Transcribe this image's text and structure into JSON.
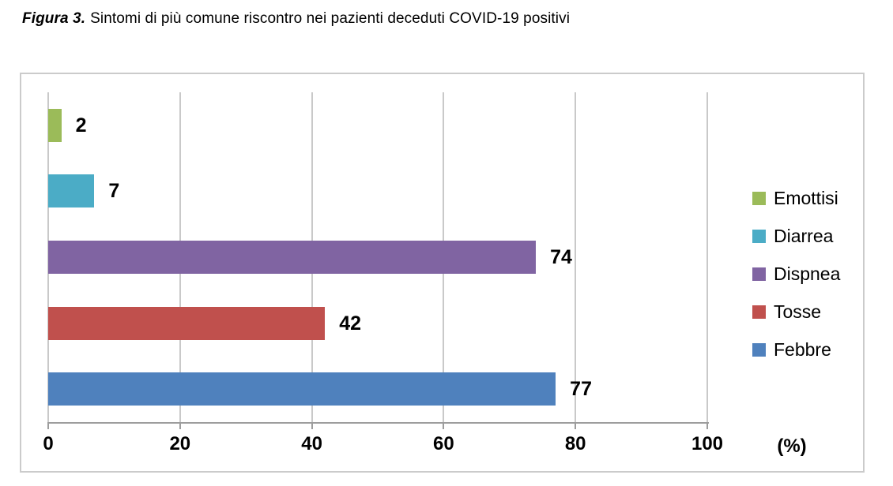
{
  "title": {
    "prefix": "Figura 3.",
    "text": "Sintomi di più comune riscontro nei pazienti deceduti COVID-19 positivi"
  },
  "chart_data": {
    "type": "bar",
    "orientation": "horizontal",
    "categories": [
      "Emottisi",
      "Diarrea",
      "Dispnea",
      "Tosse",
      "Febbre"
    ],
    "values": [
      2,
      7,
      74,
      42,
      77
    ],
    "colors": [
      "#9BBB59",
      "#4BACC6",
      "#8064A2",
      "#C0504D",
      "#4F81BD"
    ],
    "data_labels": [
      "2",
      "7",
      "74",
      "42",
      "77"
    ],
    "xlabel": "(%)",
    "xlim": [
      0,
      100
    ],
    "xticks": [
      "0",
      "20",
      "40",
      "60",
      "80",
      "100"
    ],
    "grid": true,
    "legend_position": "right",
    "legend": [
      "Emottisi",
      "Diarrea",
      "Dispnea",
      "Tosse",
      "Febbre"
    ]
  }
}
